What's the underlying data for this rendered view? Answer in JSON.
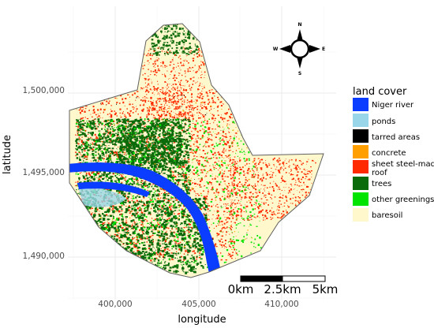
{
  "axes": {
    "xlabel": "longitude",
    "ylabel": "latitude",
    "x_ticks": [
      "400,000",
      "405,000",
      "410,000"
    ],
    "y_ticks": [
      "1,490,000",
      "1,495,000",
      "1,500,000"
    ]
  },
  "compass": {
    "n": "N",
    "s": "S",
    "e": "E",
    "w": "W"
  },
  "scalebar": {
    "labels": [
      "0km",
      "2.5km",
      "5km"
    ]
  },
  "legend": {
    "title": "land cover",
    "position": "right",
    "items": [
      {
        "label": "Niger river",
        "color": "#0a3dff"
      },
      {
        "label": "ponds",
        "color": "#9ad6ea"
      },
      {
        "label": "tarred areas",
        "color": "#000000"
      },
      {
        "label": "concrete",
        "color": "#ff9f00"
      },
      {
        "label": "sheet steel-made roof",
        "label_lines": [
          "sheet steel-made",
          "roof"
        ],
        "color": "#ff2a00"
      },
      {
        "label": "trees",
        "color": "#0a6b0a"
      },
      {
        "label": "other greenings",
        "color": "#00e400"
      },
      {
        "label": "baresoil",
        "color": "#fff8cc"
      }
    ]
  },
  "colors": {
    "panel_background": "#ffffff",
    "grid_major": "#ebebeb",
    "grid_minor": "#f5f5f5",
    "boundary": "#606060"
  }
}
